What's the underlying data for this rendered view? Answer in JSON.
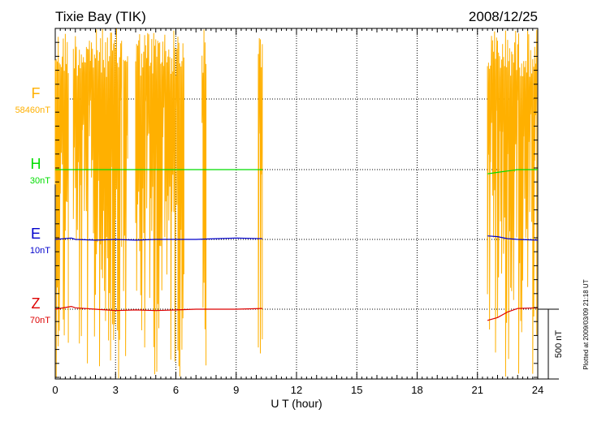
{
  "header": {
    "station": "Tixie Bay (TIK)",
    "date": "2008/12/25"
  },
  "footer_note": "Plotted at 2009/03/09 21:18 UT",
  "scale_bar_label": "500 nT",
  "colors": {
    "F": "#ffb000",
    "H": "#00dd00",
    "E": "#0000cc",
    "Z": "#dd0000",
    "grid": "#000000"
  },
  "chart_data": {
    "type": "line",
    "xlabel": "U T (hour)",
    "xlim": [
      0,
      24
    ],
    "x_ticks": [
      "0",
      "3",
      "6",
      "9",
      "12",
      "15",
      "18",
      "21",
      "24"
    ],
    "scale_nT": 500,
    "channels": [
      {
        "name": "F",
        "baseline_label": "58460nT",
        "baseline_level": 0
      },
      {
        "name": "H",
        "baseline_label": "30nT",
        "baseline_level": 1
      },
      {
        "name": "E",
        "baseline_label": "10nT",
        "baseline_level": 2
      },
      {
        "name": "Z",
        "baseline_label": "70nT",
        "baseline_level": 3
      }
    ],
    "data_gaps": [
      [
        10.4,
        21.5
      ]
    ],
    "series": [
      {
        "name": "H",
        "x": [
          0,
          1,
          2,
          3,
          4,
          5,
          6,
          7,
          8,
          9,
          10.3,
          21.5,
          22,
          22.5,
          23,
          24
        ],
        "y": [
          0,
          0,
          0,
          0,
          0,
          0,
          0,
          0,
          0,
          0,
          0,
          -30,
          -20,
          -10,
          0,
          0
        ]
      },
      {
        "name": "E",
        "x": [
          0,
          0.8,
          1,
          2,
          3,
          4,
          5,
          6,
          7,
          8,
          9,
          10.3,
          21.5,
          22,
          22.5,
          23,
          24
        ],
        "y": [
          0,
          10,
          0,
          -5,
          0,
          -5,
          0,
          0,
          0,
          5,
          10,
          5,
          25,
          20,
          5,
          0,
          -5
        ]
      },
      {
        "name": "Z",
        "x": [
          0,
          0.8,
          1,
          2,
          3,
          4,
          5,
          6,
          7,
          8,
          9,
          10.3,
          21.5,
          22,
          22.5,
          23,
          24
        ],
        "y": [
          0,
          20,
          10,
          0,
          -10,
          -5,
          -10,
          -5,
          0,
          0,
          0,
          5,
          -80,
          -60,
          -20,
          5,
          10
        ]
      }
    ]
  }
}
